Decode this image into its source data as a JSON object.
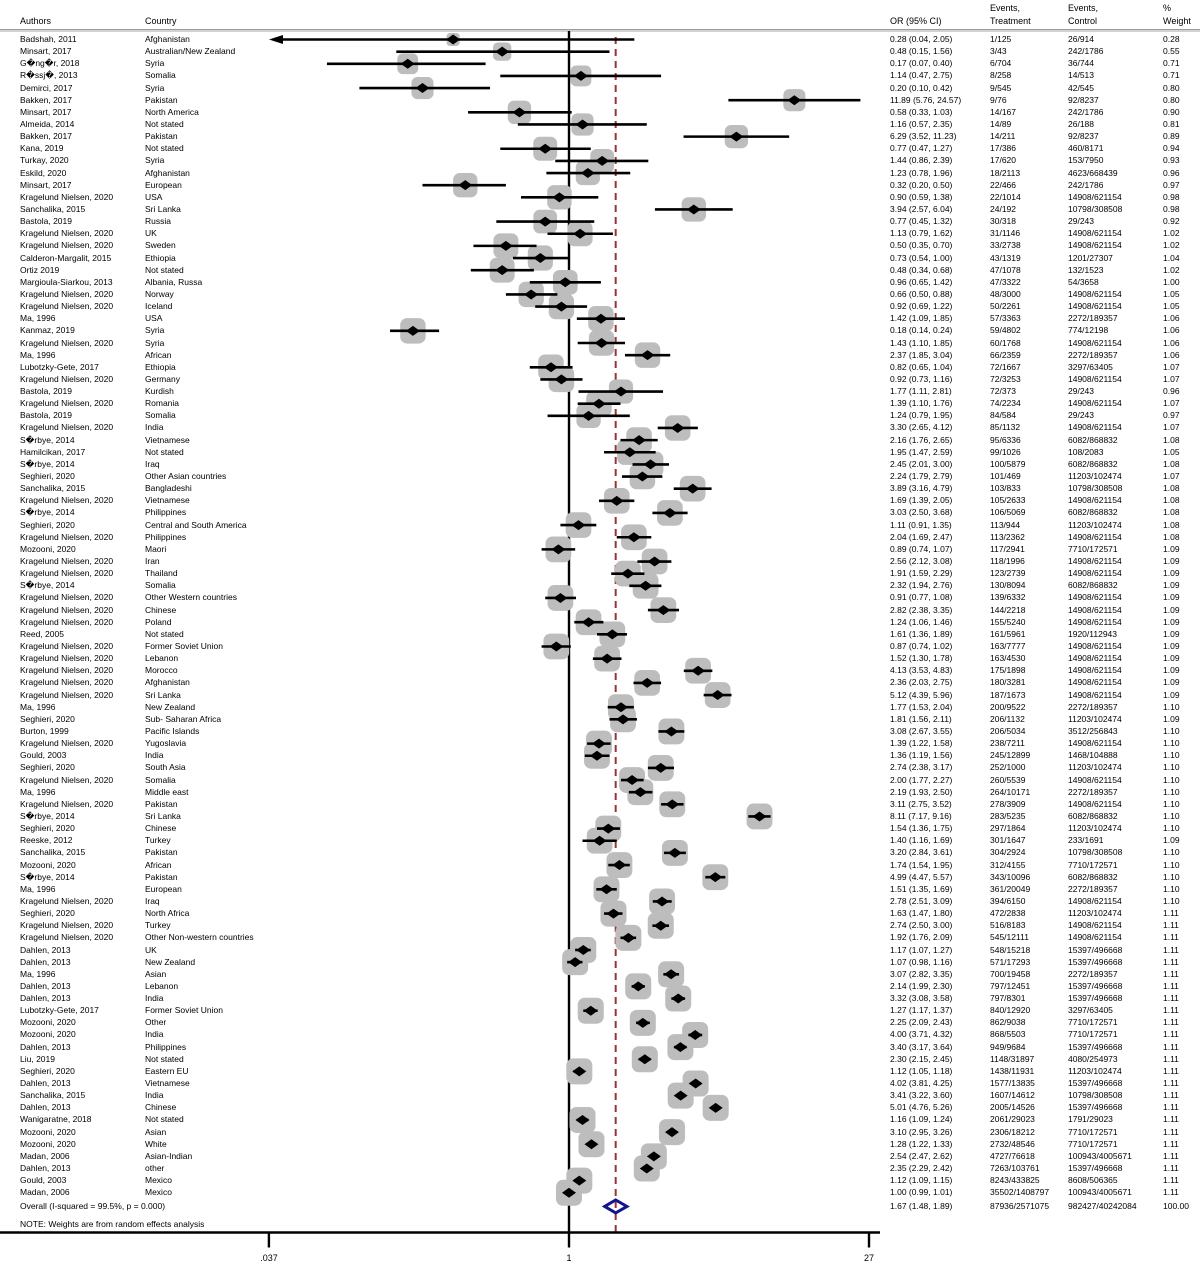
{
  "header": {
    "authors": "Authors",
    "country": "Country",
    "or_ci": "OR (95% CI)",
    "events_line1": "Events,",
    "treatment_line2": "Treatment",
    "control_line2": "Control",
    "percent_line1": "%",
    "weight_line2": "Weight"
  },
  "note": "NOTE: Weights are from random effects analysis",
  "axis": {
    "ticks": [
      ".037",
      "1",
      "27"
    ],
    "tick_values": [
      0.037,
      1,
      27
    ],
    "scale": "log",
    "null_value": 1
  },
  "colors": {
    "box": "#bdbdbd",
    "marker": "#000000",
    "line": "#000000",
    "dashed_overall_line": "#963434",
    "overall_diamond": "#14148c",
    "divider": "#c9c9c9"
  },
  "chart_data": {
    "type": "forest",
    "fields": [
      "author",
      "country",
      "or_95ci",
      "events_treatment",
      "events_control",
      "weight_pct"
    ],
    "clip_arrow_rows": [
      0
    ],
    "studies": [
      [
        "Badshah, 2011",
        "Afghanistan",
        "0.28 (0.04, 2.05)",
        "1/125",
        "26/914",
        "0.28"
      ],
      [
        "Minsart, 2017",
        "Australian/New Zealand",
        "0.48 (0.15, 1.56)",
        "3/43",
        "242/1786",
        "0.55"
      ],
      [
        "G�ng�r, 2018",
        "Syria",
        "0.17 (0.07, 0.40)",
        "6/704",
        "36/744",
        "0.71"
      ],
      [
        "R�ssj�, 2013",
        "Somalia",
        "1.14 (0.47, 2.75)",
        "8/258",
        "14/513",
        "0.71"
      ],
      [
        "Demirci, 2017",
        "Syria",
        "0.20 (0.10, 0.42)",
        "9/545",
        "42/545",
        "0.80"
      ],
      [
        "Bakken, 2017",
        "Pakistan",
        "11.89 (5.76, 24.57)",
        "9/76",
        "92/8237",
        "0.80"
      ],
      [
        "Minsart, 2017",
        "North America",
        "0.58 (0.33, 1.03)",
        "14/167",
        "242/1786",
        "0.90"
      ],
      [
        "Almeida, 2014",
        "Not stated",
        "1.16 (0.57, 2.35)",
        "14/89",
        "26/188",
        "0.81"
      ],
      [
        "Bakken, 2017",
        "Pakistan",
        "6.29 (3.52, 11.23)",
        "14/211",
        "92/8237",
        "0.89"
      ],
      [
        "Kana, 2019",
        "Not stated",
        "0.77 (0.47, 1.27)",
        "17/386",
        "460/8171",
        "0.94"
      ],
      [
        "Turkay, 2020",
        "Syria",
        "1.44 (0.86, 2.39)",
        "17/620",
        "153/7950",
        "0.93"
      ],
      [
        "Eskild, 2020",
        "Afghanistan",
        "1.23 (0.78, 1.96)",
        "18/2113",
        "4623/668439",
        "0.96"
      ],
      [
        "Minsart, 2017",
        "European",
        "0.32 (0.20, 0.50)",
        "22/466",
        "242/1786",
        "0.97"
      ],
      [
        "Kragelund Nielsen, 2020",
        "USA",
        "0.90 (0.59, 1.38)",
        "22/1014",
        "14908/621154",
        "0.98"
      ],
      [
        "Sanchalika, 2015",
        "Sri Lanka",
        "3.94 (2.57, 6.04)",
        "24/192",
        "10798/308508",
        "0.98"
      ],
      [
        "Bastola, 2019",
        "Russia",
        "0.77 (0.45, 1.32)",
        "30/318",
        "29/243",
        "0.92"
      ],
      [
        "Kragelund Nielsen, 2020",
        "UK",
        "1.13 (0.79, 1.62)",
        "31/1146",
        "14908/621154",
        "1.02"
      ],
      [
        "Kragelund Nielsen, 2020",
        "Sweden",
        "0.50 (0.35, 0.70)",
        "33/2738",
        "14908/621154",
        "1.02"
      ],
      [
        "Calderon-Margalit, 2015",
        "Ethiopia",
        "0.73 (0.54, 1.00)",
        "43/1319",
        "1201/27307",
        "1.04"
      ],
      [
        "Ortiz 2019",
        "Not stated",
        "0.48 (0.34, 0.68)",
        "47/1078",
        "132/1523",
        "1.02"
      ],
      [
        "Margioula-Siarkou, 2013",
        "Albania, Russa",
        "0.96 (0.65, 1.42)",
        "47/3322",
        "54/3658",
        "1.00"
      ],
      [
        "Kragelund Nielsen, 2020",
        "Norway",
        "0.66 (0.50, 0.88)",
        "48/3000",
        "14908/621154",
        "1.05"
      ],
      [
        "Kragelund Nielsen, 2020",
        "Iceland",
        "0.92 (0.69, 1.22)",
        "50/2261",
        "14908/621154",
        "1.05"
      ],
      [
        "Ma, 1996",
        "USA",
        "1.42 (1.09, 1.85)",
        "57/3363",
        "2272/189357",
        "1.06"
      ],
      [
        "Kanmaz, 2019",
        "Syria",
        "0.18 (0.14, 0.24)",
        "59/4802",
        "774/12198",
        "1.06"
      ],
      [
        "Kragelund Nielsen, 2020",
        "Syria",
        "1.43 (1.10, 1.85)",
        "60/1768",
        "14908/621154",
        "1.06"
      ],
      [
        "Ma, 1996",
        "African",
        "2.37 (1.85, 3.04)",
        "66/2359",
        "2272/189357",
        "1.06"
      ],
      [
        "Lubotzky-Gete, 2017",
        "Ethiopia",
        "0.82 (0.65, 1.04)",
        "72/1667",
        "3297/63405",
        "1.07"
      ],
      [
        "Kragelund Nielsen, 2020",
        "Germany",
        "0.92 (0.73, 1.16)",
        "72/3253",
        "14908/621154",
        "1.07"
      ],
      [
        "Bastola, 2019",
        "Kurdish",
        "1.77 (1.11, 2.81)",
        "72/373",
        "29/243",
        "0.96"
      ],
      [
        "Kragelund Nielsen, 2020",
        "Romania",
        "1.39 (1.10, 1.76)",
        "74/2234",
        "14908/621154",
        "1.07"
      ],
      [
        "Bastola, 2019",
        "Somalia",
        "1.24 (0.79, 1.95)",
        "84/584",
        "29/243",
        "0.97"
      ],
      [
        "Kragelund Nielsen, 2020",
        "India",
        "3.30 (2.65, 4.12)",
        "85/1132",
        "14908/621154",
        "1.07"
      ],
      [
        "S�rbye, 2014",
        "Vietnamese",
        "2.16 (1.76, 2.65)",
        "95/6336",
        "6082/868832",
        "1.08"
      ],
      [
        "Hamilcikan, 2017",
        "Not stated",
        "1.95 (1.47, 2.59)",
        "99/1026",
        "108/2083",
        "1.05"
      ],
      [
        "S�rbye, 2014",
        "Iraq",
        "2.45 (2.01, 3.00)",
        "100/5879",
        "6082/868832",
        "1.08"
      ],
      [
        "Seghieri, 2020",
        "Other Asian countries",
        "2.24 (1.79, 2.79)",
        "101/469",
        "11203/102474",
        "1.07"
      ],
      [
        "Sanchalika, 2015",
        "Bangladeshi",
        "3.89 (3.16, 4.79)",
        "103/833",
        "10798/308508",
        "1.08"
      ],
      [
        "Kragelund Nielsen, 2020",
        "Vietnamese",
        "1.69 (1.39, 2.05)",
        "105/2633",
        "14908/621154",
        "1.08"
      ],
      [
        "S�rbye, 2014",
        "Philippines",
        "3.03 (2.50, 3.68)",
        "106/5069",
        "6082/868832",
        "1.08"
      ],
      [
        "Seghieri, 2020",
        "Central and South America",
        "1.11 (0.91, 1.35)",
        "113/944",
        "11203/102474",
        "1.08"
      ],
      [
        "Kragelund Nielsen, 2020",
        "Philippines",
        "2.04 (1.69, 2.47)",
        "113/2362",
        "14908/621154",
        "1.08"
      ],
      [
        "Mozooni, 2020",
        "Maori",
        "0.89 (0.74, 1.07)",
        "117/2941",
        "7710/172571",
        "1.09"
      ],
      [
        "Kragelund Nielsen, 2020",
        "Iran",
        "2.56 (2.12, 3.08)",
        "118/1996",
        "14908/621154",
        "1.09"
      ],
      [
        "Kragelund Nielsen, 2020",
        "Thailand",
        "1.91 (1.59, 2.29)",
        "123/2739",
        "14908/621154",
        "1.09"
      ],
      [
        "S�rbye, 2014",
        "Somalia",
        "2.32 (1.94, 2.76)",
        "130/8094",
        "6082/868832",
        "1.09"
      ],
      [
        "Kragelund Nielsen, 2020",
        "Other Western countries",
        "0.91 (0.77, 1.08)",
        "139/6332",
        "14908/621154",
        "1.09"
      ],
      [
        "Kragelund Nielsen, 2020",
        "Chinese",
        "2.82 (2.38, 3.35)",
        "144/2218",
        "14908/621154",
        "1.09"
      ],
      [
        "Kragelund Nielsen, 2020",
        "Poland",
        "1.24 (1.06, 1.46)",
        "155/5240",
        "14908/621154",
        "1.09"
      ],
      [
        "Reed, 2005",
        "Not stated",
        "1.61 (1.36, 1.89)",
        "161/5961",
        "1920/112943",
        "1.09"
      ],
      [
        "Kragelund Nielsen, 2020",
        "Former Soviet Union",
        "0.87 (0.74, 1.02)",
        "163/7777",
        "14908/621154",
        "1.09"
      ],
      [
        "Kragelund Nielsen, 2020",
        "Lebanon",
        "1.52 (1.30, 1.78)",
        "163/4530",
        "14908/621154",
        "1.09"
      ],
      [
        "Kragelund Nielsen, 2020",
        "Morocco",
        "4.13 (3.53, 4.83)",
        "175/1898",
        "14908/621154",
        "1.09"
      ],
      [
        "Kragelund Nielsen, 2020",
        "Afghanistan",
        "2.36 (2.03, 2.75)",
        "180/3281",
        "14908/621154",
        "1.09"
      ],
      [
        "Kragelund Nielsen, 2020",
        "Sri Lanka",
        "5.12 (4.39, 5.96)",
        "187/1673",
        "14908/621154",
        "1.09"
      ],
      [
        "Ma, 1996",
        "New Zealand",
        "1.77 (1.53, 2.04)",
        "200/9522",
        "2272/189357",
        "1.10"
      ],
      [
        "Seghieri, 2020",
        "Sub- Saharan Africa",
        "1.81 (1.56, 2.11)",
        "206/1132",
        "11203/102474",
        "1.09"
      ],
      [
        "Burton, 1999",
        "Pacific Islands",
        "3.08 (2.67, 3.55)",
        "206/5034",
        "3512/256843",
        "1.10"
      ],
      [
        "Kragelund Nielsen, 2020",
        "Yugoslavia",
        "1.39 (1.22, 1.58)",
        "238/7211",
        "14908/621154",
        "1.10"
      ],
      [
        "Gould, 2003",
        "India",
        "1.36 (1.19, 1.56)",
        "245/12899",
        "1468/104888",
        "1.10"
      ],
      [
        "Seghieri, 2020",
        "South Asia",
        "2.74 (2.38, 3.17)",
        "252/1000",
        "11203/102474",
        "1.10"
      ],
      [
        "Kragelund Nielsen, 2020",
        "Somalia",
        "2.00 (1.77, 2.27)",
        "260/5539",
        "14908/621154",
        "1.10"
      ],
      [
        "Ma, 1996",
        "Middle east",
        "2.19 (1.93, 2.50)",
        "264/10171",
        "2272/189357",
        "1.10"
      ],
      [
        "Kragelund Nielsen, 2020",
        "Pakistan",
        "3.11 (2.75, 3.52)",
        "278/3909",
        "14908/621154",
        "1.10"
      ],
      [
        "S�rbye, 2014",
        "Sri Lanka",
        "8.11 (7.17, 9.16)",
        "283/5235",
        "6082/868832",
        "1.10"
      ],
      [
        "Seghieri, 2020",
        "Chinese",
        "1.54 (1.36, 1.75)",
        "297/1864",
        "11203/102474",
        "1.10"
      ],
      [
        "Reeske, 2012",
        "Turkey",
        "1.40 (1.16, 1.69)",
        "301/1647",
        "233/1691",
        "1.09"
      ],
      [
        "Sanchalika, 2015",
        "Pakistan",
        "3.20 (2.84, 3.61)",
        "304/2924",
        "10798/308508",
        "1.10"
      ],
      [
        "Mozooni, 2020",
        "African",
        "1.74 (1.54, 1.95)",
        "312/4155",
        "7710/172571",
        "1.10"
      ],
      [
        "S�rbye, 2014",
        "Pakistan",
        "4.99 (4.47, 5.57)",
        "343/10096",
        "6082/868832",
        "1.10"
      ],
      [
        "Ma, 1996",
        "European",
        "1.51 (1.35, 1.69)",
        "361/20049",
        "2272/189357",
        "1.10"
      ],
      [
        "Kragelund Nielsen, 2020",
        "Iraq",
        "2.78 (2.51, 3.09)",
        "394/6150",
        "14908/621154",
        "1.10"
      ],
      [
        "Seghieri, 2020",
        "North Africa",
        "1.63 (1.47, 1.80)",
        "472/2838",
        "11203/102474",
        "1.11"
      ],
      [
        "Kragelund Nielsen, 2020",
        "Turkey",
        "2.74 (2.50, 3.00)",
        "516/8183",
        "14908/621154",
        "1.11"
      ],
      [
        "Kragelund Nielsen, 2020",
        "Other Non-western countries",
        "1.92 (1.76, 2.09)",
        "545/12111",
        "14908/621154",
        "1.11"
      ],
      [
        "Dahlen, 2013",
        "UK",
        "1.17 (1.07, 1.27)",
        "548/15218",
        "15397/496668",
        "1.11"
      ],
      [
        "Dahlen, 2013",
        "New Zealand",
        "1.07 (0.98, 1.16)",
        "571/17293",
        "15397/496668",
        "1.11"
      ],
      [
        "Ma, 1996",
        "Asian",
        "3.07 (2.82, 3.35)",
        "700/19458",
        "2272/189357",
        "1.11"
      ],
      [
        "Dahlen, 2013",
        "Lebanon",
        "2.14 (1.99, 2.30)",
        "797/12451",
        "15397/496668",
        "1.11"
      ],
      [
        "Dahlen, 2013",
        "India",
        "3.32 (3.08, 3.58)",
        "797/8301",
        "15397/496668",
        "1.11"
      ],
      [
        "Lubotzky-Gete, 2017",
        "Former Soviet Union",
        "1.27 (1.17, 1.37)",
        "840/12920",
        "3297/63405",
        "1.11"
      ],
      [
        "Mozooni, 2020",
        "Other",
        "2.25 (2.09, 2.43)",
        "862/9038",
        "7710/172571",
        "1.11"
      ],
      [
        "Mozooni, 2020",
        "India",
        "4.00 (3.71, 4.32)",
        "868/5503",
        "7710/172571",
        "1.11"
      ],
      [
        "Dahlen, 2013",
        "Philippines",
        "3.40 (3.17, 3.64)",
        "949/9684",
        "15397/496668",
        "1.11"
      ],
      [
        "Liu, 2019",
        "Not stated",
        "2.30 (2.15, 2.45)",
        "1148/31897",
        "4080/254973",
        "1.11"
      ],
      [
        "Seghieri, 2020",
        "Eastern EU",
        "1.12 (1.05, 1.18)",
        "1438/11931",
        "11203/102474",
        "1.11"
      ],
      [
        "Dahlen, 2013",
        "Vietnamese",
        "4.02 (3.81, 4.25)",
        "1577/13835",
        "15397/496668",
        "1.11"
      ],
      [
        "Sanchalika, 2015",
        "India",
        "3.41 (3.22, 3.60)",
        "1607/14612",
        "10798/308508",
        "1.11"
      ],
      [
        "Dahlen, 2013",
        "Chinese",
        "5.01 (4.76, 5.26)",
        "2005/14526",
        "15397/496668",
        "1.11"
      ],
      [
        "Wanigaratne, 2018",
        "Not stated",
        "1.16 (1.09, 1.24)",
        "2061/29023",
        "1791/29023",
        "1.11"
      ],
      [
        "Mozooni, 2020",
        "Asian",
        "3.10 (2.95, 3.26)",
        "2306/18212",
        "7710/172571",
        "1.11"
      ],
      [
        "Mozooni, 2020",
        "White",
        "1.28 (1.22, 1.33)",
        "2732/48546",
        "7710/172571",
        "1.11"
      ],
      [
        "Madan, 2006",
        "Asian-Indian",
        "2.54 (2.47, 2.62)",
        "4727/76618",
        "100943/4005671",
        "1.11"
      ],
      [
        "Dahlen, 2013",
        "other",
        "2.35 (2.29, 2.42)",
        "7263/103761",
        "15397/496668",
        "1.11"
      ],
      [
        "Gould, 2003",
        "Mexico",
        "1.12 (1.09, 1.15)",
        "8243/433825",
        "8608/506365",
        "1.11"
      ],
      [
        "Madan, 2006",
        "Mexico",
        "1.00 (0.99, 1.01)",
        "35502/1408797",
        "100943/4005671",
        "1.11"
      ]
    ],
    "overall": {
      "label": "Overall  (I-squared = 99.5%, p = 0.000)",
      "or_95ci": "1.67 (1.48, 1.89)",
      "or": 1.67,
      "lo": 1.48,
      "hi": 1.89,
      "events_treatment": "87936/2571075",
      "events_control": "982427/40242084",
      "weight_pct": "100.00"
    }
  }
}
